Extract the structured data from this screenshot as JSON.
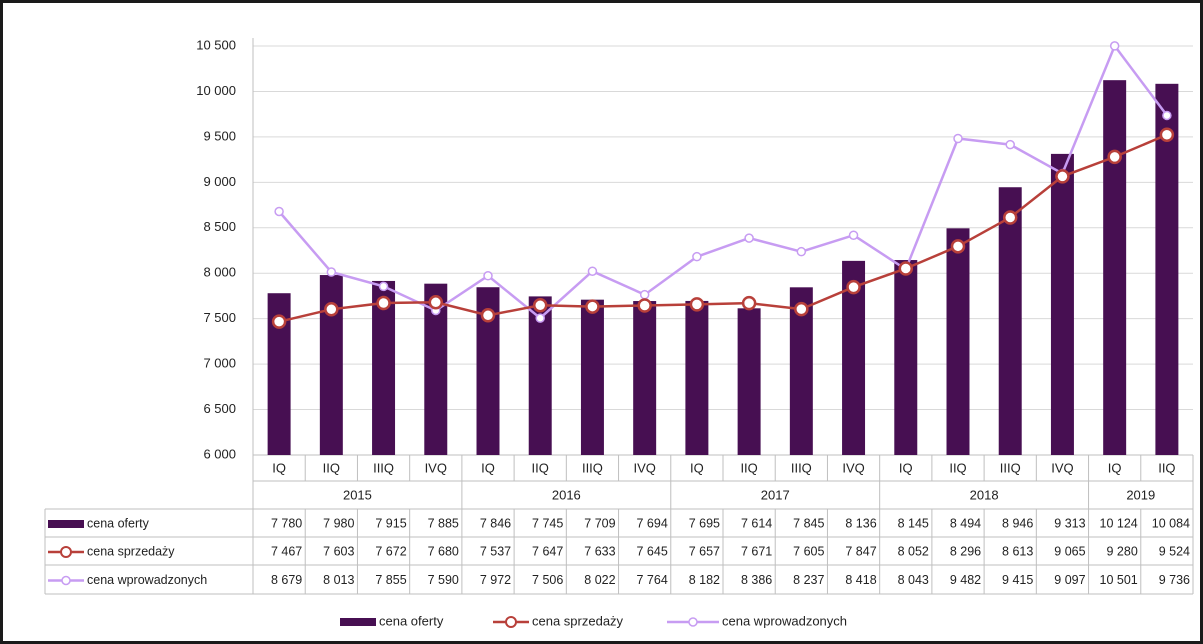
{
  "chart_data": {
    "type": "combo",
    "categories": [
      "IQ",
      "IIQ",
      "IIIQ",
      "IVQ",
      "IQ",
      "IIQ",
      "IIIQ",
      "IVQ",
      "IQ",
      "IIQ",
      "IIIQ",
      "IVQ",
      "IQ",
      "IIQ",
      "IIIQ",
      "IVQ",
      "IQ",
      "IIQ"
    ],
    "year_labels": [
      "2015",
      null,
      null,
      null,
      "2016",
      null,
      null,
      null,
      "2017",
      null,
      null,
      null,
      "2018",
      null,
      null,
      null,
      "2019",
      null
    ],
    "series": [
      {
        "name": "cena oferty",
        "type": "bar",
        "color": "#470f52",
        "values": [
          7780,
          7980,
          7915,
          7885,
          7846,
          7745,
          7709,
          7694,
          7695,
          7614,
          7845,
          8136,
          8145,
          8494,
          8946,
          9313,
          10124,
          10084
        ],
        "value_labels": [
          "7 780",
          "7 980",
          "7 915",
          "7 885",
          "7 846",
          "7 745",
          "7 709",
          "7 694",
          "7 695",
          "7 614",
          "7 845",
          "8 136",
          "8 145",
          "8 494",
          "8 946",
          "9 313",
          "10 124",
          "10 084"
        ]
      },
      {
        "name": "cena sprzedaży",
        "type": "line",
        "color": "#b8403a",
        "values": [
          7467,
          7603,
          7672,
          7680,
          7537,
          7647,
          7633,
          7645,
          7657,
          7671,
          7605,
          7847,
          8052,
          8296,
          8613,
          9065,
          9280,
          9524
        ],
        "value_labels": [
          "7 467",
          "7 603",
          "7 672",
          "7 680",
          "7 537",
          "7 647",
          "7 633",
          "7 645",
          "7 657",
          "7 671",
          "7 605",
          "7 847",
          "8 052",
          "8 296",
          "8 613",
          "9 065",
          "9 280",
          "9 524"
        ]
      },
      {
        "name": "cena wprowadzonych",
        "type": "line",
        "color": "#c79cf2",
        "values": [
          8679,
          8013,
          7855,
          7590,
          7972,
          7506,
          8022,
          7764,
          8182,
          8386,
          8237,
          8418,
          8043,
          9482,
          9415,
          9097,
          10501,
          9736
        ],
        "value_labels": [
          "8 679",
          "8 013",
          "7 855",
          "7 590",
          "7 972",
          "7 506",
          "8 022",
          "7 764",
          "8 182",
          "8 386",
          "8 237",
          "8 418",
          "8 043",
          "9 482",
          "9 415",
          "9 097",
          "10 501",
          "9 736"
        ]
      }
    ],
    "ylim": [
      6000,
      10500
    ],
    "yticks": [
      {
        "value": 6000,
        "label": "6 000"
      },
      {
        "value": 6500,
        "label": "6 500"
      },
      {
        "value": 7000,
        "label": "7 000"
      },
      {
        "value": 7500,
        "label": "7 500"
      },
      {
        "value": 8000,
        "label": "8 000"
      },
      {
        "value": 8500,
        "label": "8 500"
      },
      {
        "value": 9000,
        "label": "9 000"
      },
      {
        "value": 9500,
        "label": "9 500"
      },
      {
        "value": 10000,
        "label": "10 000"
      },
      {
        "value": 10500,
        "label": "10 500"
      }
    ],
    "grid": true
  }
}
